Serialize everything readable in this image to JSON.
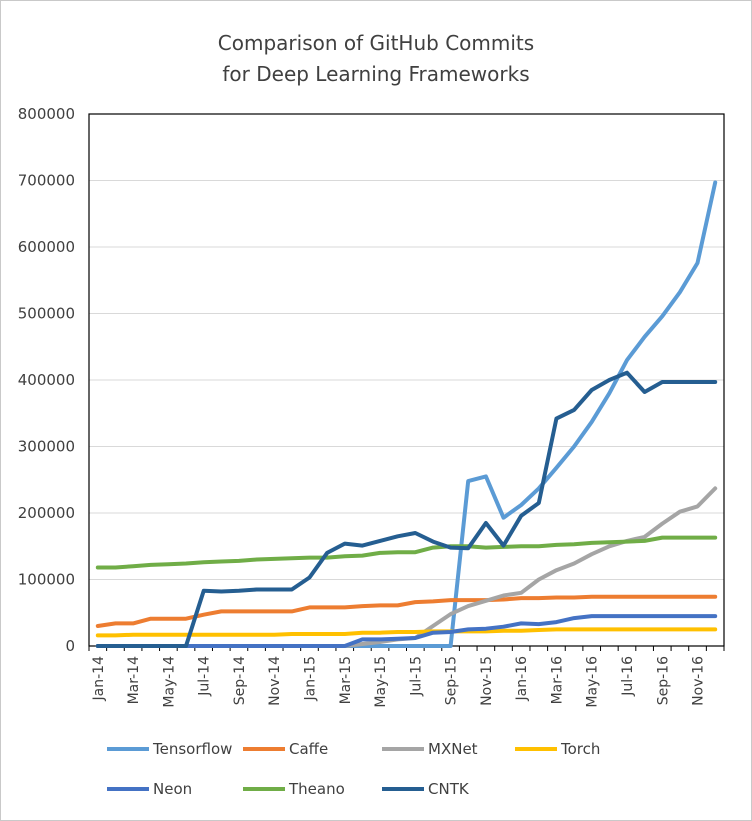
{
  "chart_data": {
    "type": "line",
    "title_line1": "Comparison of GitHub Commits",
    "title_line2": "for Deep Learning Frameworks",
    "xlabel": "",
    "ylabel": "",
    "ylim": [
      0,
      800000
    ],
    "yticks": [
      "0",
      "100000",
      "200000",
      "300000",
      "400000",
      "500000",
      "600000",
      "700000",
      "800000"
    ],
    "x": [
      "Jan-14",
      "Feb-14",
      "Mar-14",
      "Apr-14",
      "May-14",
      "Jun-14",
      "Jul-14",
      "Aug-14",
      "Sep-14",
      "Oct-14",
      "Nov-14",
      "Dec-14",
      "Jan-15",
      "Feb-15",
      "Mar-15",
      "Apr-15",
      "May-15",
      "Jun-15",
      "Jul-15",
      "Aug-15",
      "Sep-15",
      "Oct-15",
      "Nov-15",
      "Dec-15",
      "Jan-16",
      "Feb-16",
      "Mar-16",
      "Apr-16",
      "May-16",
      "Jun-16",
      "Jul-16",
      "Aug-16",
      "Sep-16",
      "Oct-16",
      "Nov-16",
      "Dec-16"
    ],
    "xtick_labels": [
      "Jan-14",
      "Mar-14",
      "May-14",
      "Jul-14",
      "Sep-14",
      "Nov-14",
      "Jan-15",
      "Mar-15",
      "May-15",
      "Jul-15",
      "Sep-15",
      "Nov-15",
      "Jan-16",
      "Mar-16",
      "May-16",
      "Jul-16",
      "Sep-16",
      "Nov-16"
    ],
    "series": [
      {
        "name": "Tensorflow",
        "color": "#5b9bd5",
        "values": [
          0,
          0,
          0,
          0,
          0,
          0,
          0,
          0,
          0,
          0,
          0,
          0,
          0,
          0,
          0,
          0,
          0,
          0,
          0,
          0,
          0,
          248000,
          255000,
          193000,
          212000,
          237000,
          268000,
          300000,
          337000,
          380000,
          430000,
          465000,
          496000,
          532000,
          576000,
          697000
        ]
      },
      {
        "name": "Caffe",
        "color": "#ed7d31",
        "values": [
          30000,
          34000,
          34000,
          41000,
          41000,
          41000,
          47000,
          52000,
          52000,
          52000,
          52000,
          52000,
          58000,
          58000,
          58000,
          60000,
          61000,
          61000,
          66000,
          67000,
          69000,
          69000,
          69000,
          70000,
          72000,
          72000,
          73000,
          73000,
          74000,
          74000,
          74000,
          74000,
          74000,
          74000,
          74000,
          74000
        ]
      },
      {
        "name": "MXNet",
        "color": "#a5a5a5",
        "values": [
          0,
          0,
          0,
          0,
          0,
          0,
          0,
          0,
          0,
          0,
          0,
          0,
          0,
          0,
          0,
          3000,
          6000,
          10000,
          12000,
          30000,
          48000,
          60000,
          68000,
          76000,
          80000,
          100000,
          114000,
          124000,
          138000,
          150000,
          158000,
          164000,
          184000,
          202000,
          210000,
          237000
        ]
      },
      {
        "name": "Torch",
        "color": "#ffc000",
        "values": [
          16000,
          16000,
          17000,
          17000,
          17000,
          17000,
          17000,
          17000,
          17000,
          17000,
          17000,
          18000,
          18000,
          18000,
          18000,
          20000,
          20000,
          21000,
          21000,
          22000,
          22000,
          22000,
          22000,
          23000,
          23000,
          24000,
          25000,
          25000,
          25000,
          25000,
          25000,
          25000,
          25000,
          25000,
          25000,
          25000
        ]
      },
      {
        "name": "Neon",
        "color": "#4472c4",
        "values": [
          0,
          0,
          0,
          0,
          0,
          0,
          0,
          0,
          0,
          0,
          0,
          0,
          0,
          0,
          0,
          10000,
          10000,
          11000,
          12000,
          20000,
          21000,
          25000,
          26000,
          29000,
          34000,
          33000,
          36000,
          42000,
          45000,
          45000,
          45000,
          45000,
          45000,
          45000,
          45000,
          45000
        ]
      },
      {
        "name": "Theano",
        "color": "#70ad47",
        "values": [
          118000,
          118000,
          120000,
          122000,
          123000,
          124000,
          126000,
          127000,
          128000,
          130000,
          131000,
          132000,
          133000,
          133000,
          135000,
          136000,
          140000,
          141000,
          141000,
          148000,
          150000,
          150000,
          148000,
          149000,
          150000,
          150000,
          152000,
          153000,
          155000,
          156000,
          157000,
          158000,
          163000,
          163000,
          163000,
          163000
        ]
      },
      {
        "name": "CNTK",
        "color": "#255e91",
        "values": [
          0,
          0,
          0,
          0,
          0,
          0,
          83000,
          82000,
          83000,
          85000,
          85000,
          85000,
          103000,
          140000,
          154000,
          151000,
          158000,
          165000,
          170000,
          157000,
          148000,
          147000,
          185000,
          151000,
          196000,
          215000,
          342000,
          355000,
          385000,
          400000,
          411000,
          382000,
          397000,
          397000,
          397000,
          397000
        ]
      }
    ],
    "legend_position": "bottom"
  }
}
